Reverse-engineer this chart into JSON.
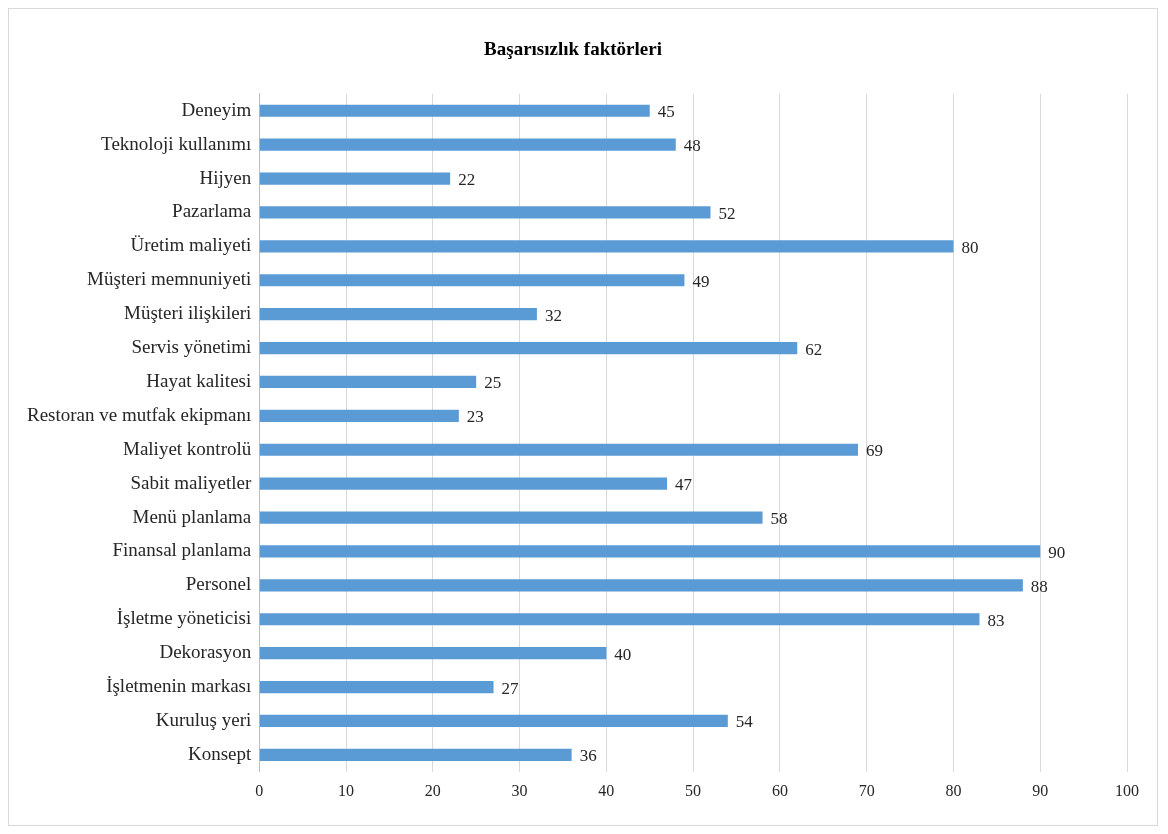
{
  "chart_data": {
    "type": "bar",
    "orientation": "horizontal",
    "title": "Başarısızlık faktörleri",
    "categories": [
      "Deneyim",
      "Teknoloji kullanımı",
      "Hijyen",
      "Pazarlama",
      "Üretim maliyeti",
      "Müşteri memnuniyeti",
      "Müşteri ilişkileri",
      "Servis yönetimi",
      "Hayat kalitesi",
      "Restoran ve mutfak ekipmanı",
      "Maliyet kontrolü",
      "Sabit maliyetler",
      "Menü planlama",
      "Finansal planlama",
      "Personel",
      "İşletme yöneticisi",
      "Dekorasyon",
      "İşletmenin markası",
      "Kuruluş yeri",
      "Konsept"
    ],
    "values": [
      45,
      48,
      22,
      52,
      80,
      49,
      32,
      62,
      25,
      23,
      69,
      47,
      58,
      90,
      88,
      83,
      40,
      27,
      54,
      36
    ],
    "color": "#5b9bd5",
    "xlim": [
      0,
      100
    ],
    "xticks": [
      0,
      10,
      20,
      30,
      40,
      50,
      60,
      70,
      80,
      90,
      100
    ],
    "grid": "x",
    "data_labels": true,
    "legend": false
  }
}
